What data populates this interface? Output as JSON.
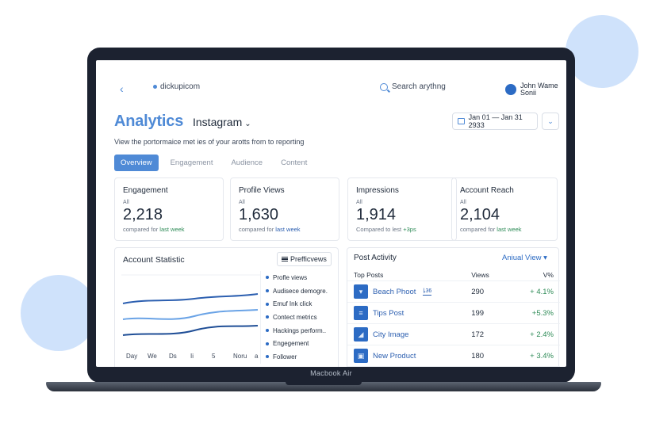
{
  "device_label": "Macbook Air",
  "header": {
    "back_glyph": "‹",
    "domain": "dickupicom",
    "search_placeholder": "Search arythng",
    "user_line1": "John Wame",
    "user_line2": "Sonii"
  },
  "page": {
    "title": "Analytics",
    "platform": "Instagram",
    "date_range": "Jan 01 — Jan 31 2933",
    "subtitle": "View the portormaice met ies of your arotts from to reporting"
  },
  "tabs": [
    {
      "label": "Overview",
      "active": true
    },
    {
      "label": "Engagement",
      "active": false
    },
    {
      "label": "Audience",
      "active": false
    },
    {
      "label": "Content",
      "active": false
    }
  ],
  "cards": [
    {
      "label": "Engagement",
      "sub": "All",
      "value": "2,218",
      "compare": "compared for",
      "compare_tail": "last week"
    },
    {
      "label": "Profile Views",
      "sub": "All",
      "value": "1,630",
      "compare": "compared for",
      "compare_tail": "last week"
    },
    {
      "label": "Impressions",
      "sub": "All",
      "value": "1,914",
      "compare": "Compared to lest",
      "compare_tail": "+3ps"
    },
    {
      "label": "Account Reach",
      "sub": "All",
      "value": "2,104",
      "compare": "compared for",
      "compare_tail": "last week"
    }
  ],
  "account_statistic": {
    "title": "Account Statistic",
    "preview_label": "Prefficvews",
    "x_labels": [
      "Day",
      "We",
      "Ds",
      "Ii",
      "5",
      "Noru",
      "a"
    ],
    "menu_items": [
      "Profle views",
      "Audisece demogre.",
      "Emuf Ink click",
      "Contect metrics",
      "Hackings perform..",
      "Engegement",
      "Follower"
    ]
  },
  "post_activity": {
    "title": "Post Activity",
    "view_label": "Aniual View",
    "col_post": "Top Posts",
    "col_views": "Views",
    "col_pct": "V%",
    "rows": [
      {
        "name": "Beach Phoot",
        "badge": "ꝲ36",
        "views": "290",
        "pct": "+ 4.1%"
      },
      {
        "name": "Tips Post",
        "badge": "",
        "views": "199",
        "pct": "+5.3%"
      },
      {
        "name": "City Image",
        "badge": "",
        "views": "172",
        "pct": "+ 2.4%"
      },
      {
        "name": "New Product",
        "badge": "",
        "views": "180",
        "pct": "+ 3.4%"
      }
    ]
  },
  "colors": {
    "accent": "#4f8ad6",
    "bezel": "#1c2230",
    "positive": "#2e8b57",
    "line1": "#2c5fb0",
    "line2": "#6aa3e6",
    "line3": "#1f4e96"
  }
}
